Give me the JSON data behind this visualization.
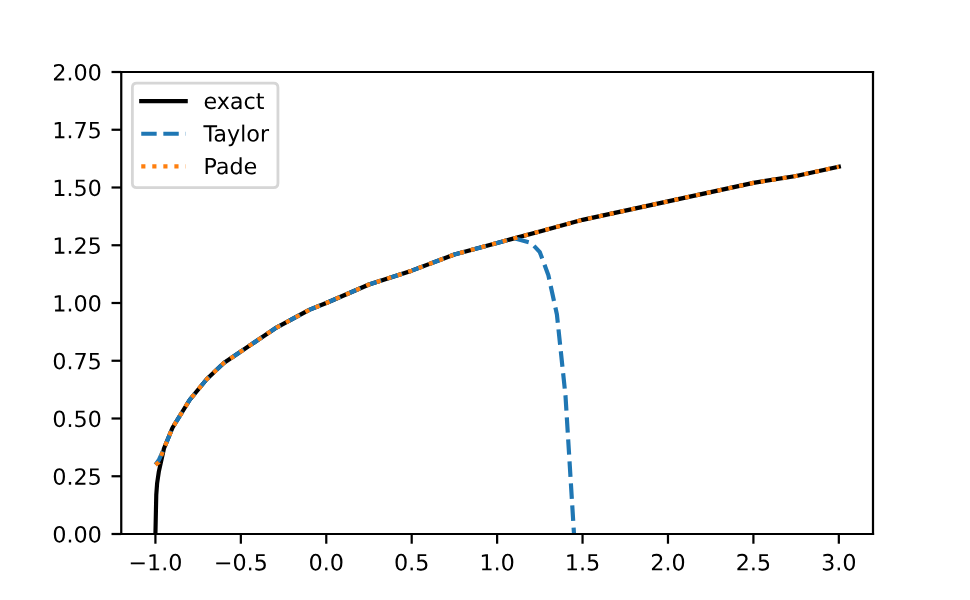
{
  "chart_data": {
    "type": "line",
    "legend": "upper left",
    "grid": false,
    "xlim": [
      -1.2,
      3.2
    ],
    "ylim": [
      0,
      2
    ],
    "xticks": [
      {
        "value": -1,
        "label": "−1.0"
      },
      {
        "value": -0.5,
        "label": "−0.5"
      },
      {
        "value": 0,
        "label": "0.0"
      },
      {
        "value": 0.5,
        "label": "0.5"
      },
      {
        "value": 1,
        "label": "1.0"
      },
      {
        "value": 1.5,
        "label": "1.5"
      },
      {
        "value": 2,
        "label": "2.0"
      },
      {
        "value": 2.5,
        "label": "2.5"
      },
      {
        "value": 3,
        "label": "3.0"
      }
    ],
    "yticks": [
      {
        "value": 0,
        "label": "0.00"
      },
      {
        "value": 0.25,
        "label": "0.25"
      },
      {
        "value": 0.5,
        "label": "0.50"
      },
      {
        "value": 0.75,
        "label": "0.75"
      },
      {
        "value": 1,
        "label": "1.00"
      },
      {
        "value": 1.25,
        "label": "1.25"
      },
      {
        "value": 1.5,
        "label": "1.50"
      },
      {
        "value": 1.75,
        "label": "1.75"
      },
      {
        "value": 2,
        "label": "2.00"
      }
    ],
    "series": [
      {
        "name": "exact",
        "color": "#000000",
        "line_style": "solid",
        "x": [
          -1,
          -0.995,
          -0.99,
          -0.98,
          -0.95,
          -0.9,
          -0.8,
          -0.7,
          -0.6,
          -0.5,
          -0.4,
          -0.3,
          -0.2,
          -0.1,
          0,
          0.25,
          0.5,
          0.75,
          1,
          1.25,
          1.5,
          1.75,
          2,
          2.25,
          2.5,
          2.75,
          3
        ],
        "values": [
          0,
          0.17,
          0.22,
          0.27,
          0.37,
          0.46,
          0.58,
          0.67,
          0.74,
          0.79,
          0.84,
          0.89,
          0.93,
          0.97,
          1.0,
          1.08,
          1.14,
          1.21,
          1.26,
          1.31,
          1.36,
          1.4,
          1.44,
          1.48,
          1.52,
          1.55,
          1.59
        ]
      },
      {
        "name": "Taylor",
        "color": "#1f77b4",
        "line_style": "dashed",
        "x": [
          -1,
          -0.98,
          -0.95,
          -0.9,
          -0.8,
          -0.7,
          -0.6,
          -0.5,
          -0.4,
          -0.3,
          -0.2,
          -0.1,
          0,
          0.25,
          0.5,
          0.75,
          1,
          1.1,
          1.2,
          1.25,
          1.3,
          1.35,
          1.4,
          1.45
        ],
        "values": [
          0.3,
          0.32,
          0.37,
          0.46,
          0.58,
          0.67,
          0.74,
          0.79,
          0.84,
          0.89,
          0.93,
          0.97,
          1.0,
          1.08,
          1.14,
          1.21,
          1.26,
          1.28,
          1.26,
          1.22,
          1.12,
          0.95,
          0.6,
          0.0
        ]
      },
      {
        "name": "Pade",
        "color": "#ff7f0e",
        "line_style": "dotted",
        "x": [
          -1,
          -0.98,
          -0.95,
          -0.9,
          -0.8,
          -0.7,
          -0.6,
          -0.5,
          -0.4,
          -0.3,
          -0.2,
          -0.1,
          0,
          0.25,
          0.5,
          0.75,
          1,
          1.25,
          1.5,
          1.75,
          2,
          2.25,
          2.5,
          2.75,
          3
        ],
        "values": [
          0.3,
          0.31,
          0.37,
          0.46,
          0.58,
          0.67,
          0.74,
          0.79,
          0.84,
          0.89,
          0.93,
          0.97,
          1.0,
          1.08,
          1.14,
          1.21,
          1.26,
          1.31,
          1.36,
          1.4,
          1.44,
          1.48,
          1.52,
          1.55,
          1.59
        ]
      }
    ]
  }
}
